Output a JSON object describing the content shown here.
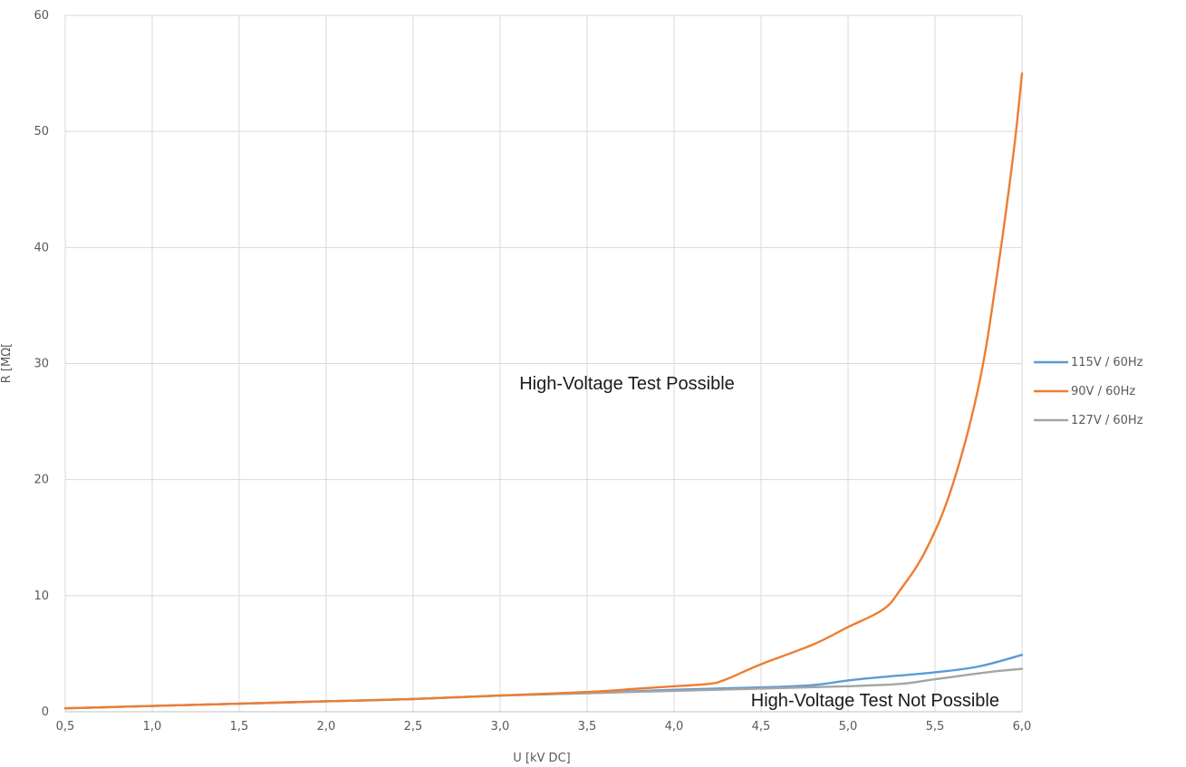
{
  "chart_data": {
    "type": "line",
    "xlabel": "U [kV DC]",
    "ylabel": "R [MΩ[",
    "xlim": [
      0.5,
      6.0
    ],
    "ylim": [
      0,
      60
    ],
    "x_ticks": [
      0.5,
      1.0,
      1.5,
      2.0,
      2.5,
      3.0,
      3.5,
      4.0,
      4.5,
      5.0,
      5.5,
      6.0
    ],
    "x_tick_labels": [
      "0,5",
      "1,0",
      "1,5",
      "2,0",
      "2,5",
      "3,0",
      "3,5",
      "4,0",
      "4,5",
      "5,0",
      "5,5",
      "6,0"
    ],
    "y_ticks": [
      0,
      10,
      20,
      30,
      40,
      50,
      60
    ],
    "y_tick_labels": [
      "0",
      "10",
      "20",
      "30",
      "40",
      "50",
      "60"
    ],
    "grid": true,
    "legend_position": "right",
    "annotations": {
      "possible": "High-Voltage Test Possible",
      "not_possible": "High-Voltage Test Not Possible"
    },
    "series": [
      {
        "name": "115V / 60Hz",
        "color": "#5b9bd5",
        "x": [
          0.5,
          1.0,
          1.5,
          2.0,
          2.5,
          3.0,
          3.5,
          4.0,
          4.5,
          4.8,
          5.0,
          5.2,
          5.5,
          5.75,
          6.0
        ],
        "y": [
          0.3,
          0.5,
          0.7,
          0.9,
          1.1,
          1.4,
          1.6,
          1.9,
          2.1,
          2.3,
          2.7,
          3.0,
          3.4,
          3.9,
          4.9
        ]
      },
      {
        "name": "90V / 60Hz",
        "color": "#ed7d31",
        "x": [
          0.5,
          1.0,
          1.5,
          2.0,
          2.5,
          3.0,
          3.5,
          3.8,
          4.0,
          4.2,
          4.3,
          4.5,
          4.8,
          5.0,
          5.2,
          5.3,
          5.45,
          5.6,
          5.75,
          5.85,
          5.95,
          6.0
        ],
        "y": [
          0.3,
          0.5,
          0.7,
          0.9,
          1.1,
          1.4,
          1.7,
          2.0,
          2.2,
          2.4,
          2.8,
          4.1,
          5.8,
          7.3,
          8.8,
          10.5,
          14.0,
          19.5,
          28.0,
          37.0,
          48.0,
          55.0
        ]
      },
      {
        "name": "127V / 60Hz",
        "color": "#a5a5a5",
        "x": [
          0.5,
          1.0,
          1.5,
          2.0,
          2.5,
          3.0,
          3.5,
          4.0,
          4.5,
          5.0,
          5.3,
          5.5,
          5.8,
          6.0
        ],
        "y": [
          0.3,
          0.5,
          0.7,
          0.9,
          1.1,
          1.4,
          1.6,
          1.8,
          2.0,
          2.2,
          2.4,
          2.8,
          3.4,
          3.7
        ]
      }
    ]
  }
}
